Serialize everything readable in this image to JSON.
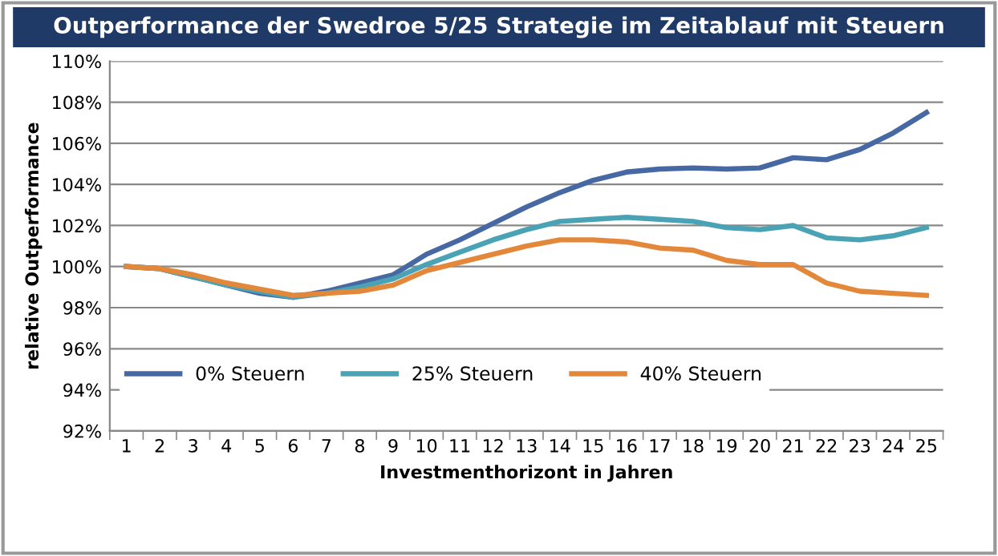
{
  "chart_data": {
    "type": "line",
    "title": "Outperformance der Swedroe 5/25 Strategie im Zeitablauf mit Steuern",
    "xlabel": "Investmenthorizont in Jahren",
    "ylabel": "relative Outperformance",
    "categories": [
      "1",
      "2",
      "3",
      "4",
      "5",
      "6",
      "7",
      "8",
      "9",
      "10",
      "11",
      "12",
      "13",
      "14",
      "15",
      "16",
      "17",
      "18",
      "19",
      "20",
      "21",
      "22",
      "23",
      "24",
      "25"
    ],
    "series": [
      {
        "name": "0% Steuern",
        "color": "#4769a3",
        "values": [
          100,
          99.9,
          99.5,
          99.1,
          98.7,
          98.5,
          98.8,
          99.2,
          99.6,
          100.6,
          101.3,
          102.1,
          102.9,
          103.6,
          104.2,
          104.6,
          104.75,
          104.8,
          104.75,
          104.8,
          105.3,
          105.2,
          105.7,
          106.5,
          107.5
        ]
      },
      {
        "name": "25% Steuern",
        "color": "#4aa3b5",
        "values": [
          100,
          99.9,
          99.5,
          99.1,
          98.8,
          98.5,
          98.7,
          99.0,
          99.4,
          100.1,
          100.7,
          101.3,
          101.8,
          102.2,
          102.3,
          102.4,
          102.3,
          102.2,
          101.9,
          101.8,
          102.0,
          101.4,
          101.3,
          101.5,
          101.9
        ]
      },
      {
        "name": "40% Steuern",
        "color": "#e3873a",
        "values": [
          100,
          99.9,
          99.6,
          99.2,
          98.9,
          98.6,
          98.7,
          98.8,
          99.1,
          99.8,
          100.2,
          100.6,
          101.0,
          101.3,
          101.3,
          101.2,
          100.9,
          100.8,
          100.3,
          100.1,
          100.1,
          99.2,
          98.8,
          98.7,
          98.6
        ]
      }
    ],
    "ylim": [
      92,
      110
    ],
    "yticks": [
      {
        "value": 92,
        "label": "92%"
      },
      {
        "value": 94,
        "label": "94%"
      },
      {
        "value": 96,
        "label": "96%"
      },
      {
        "value": 98,
        "label": "98%"
      },
      {
        "value": 100,
        "label": "100%"
      },
      {
        "value": 102,
        "label": "102%"
      },
      {
        "value": 104,
        "label": "104%"
      },
      {
        "value": 106,
        "label": "106%"
      },
      {
        "value": 108,
        "label": "108%"
      },
      {
        "value": 110,
        "label": "110%"
      }
    ],
    "grid": "y",
    "legend": "bottom left",
    "marker": "none",
    "line_style": "solid"
  }
}
